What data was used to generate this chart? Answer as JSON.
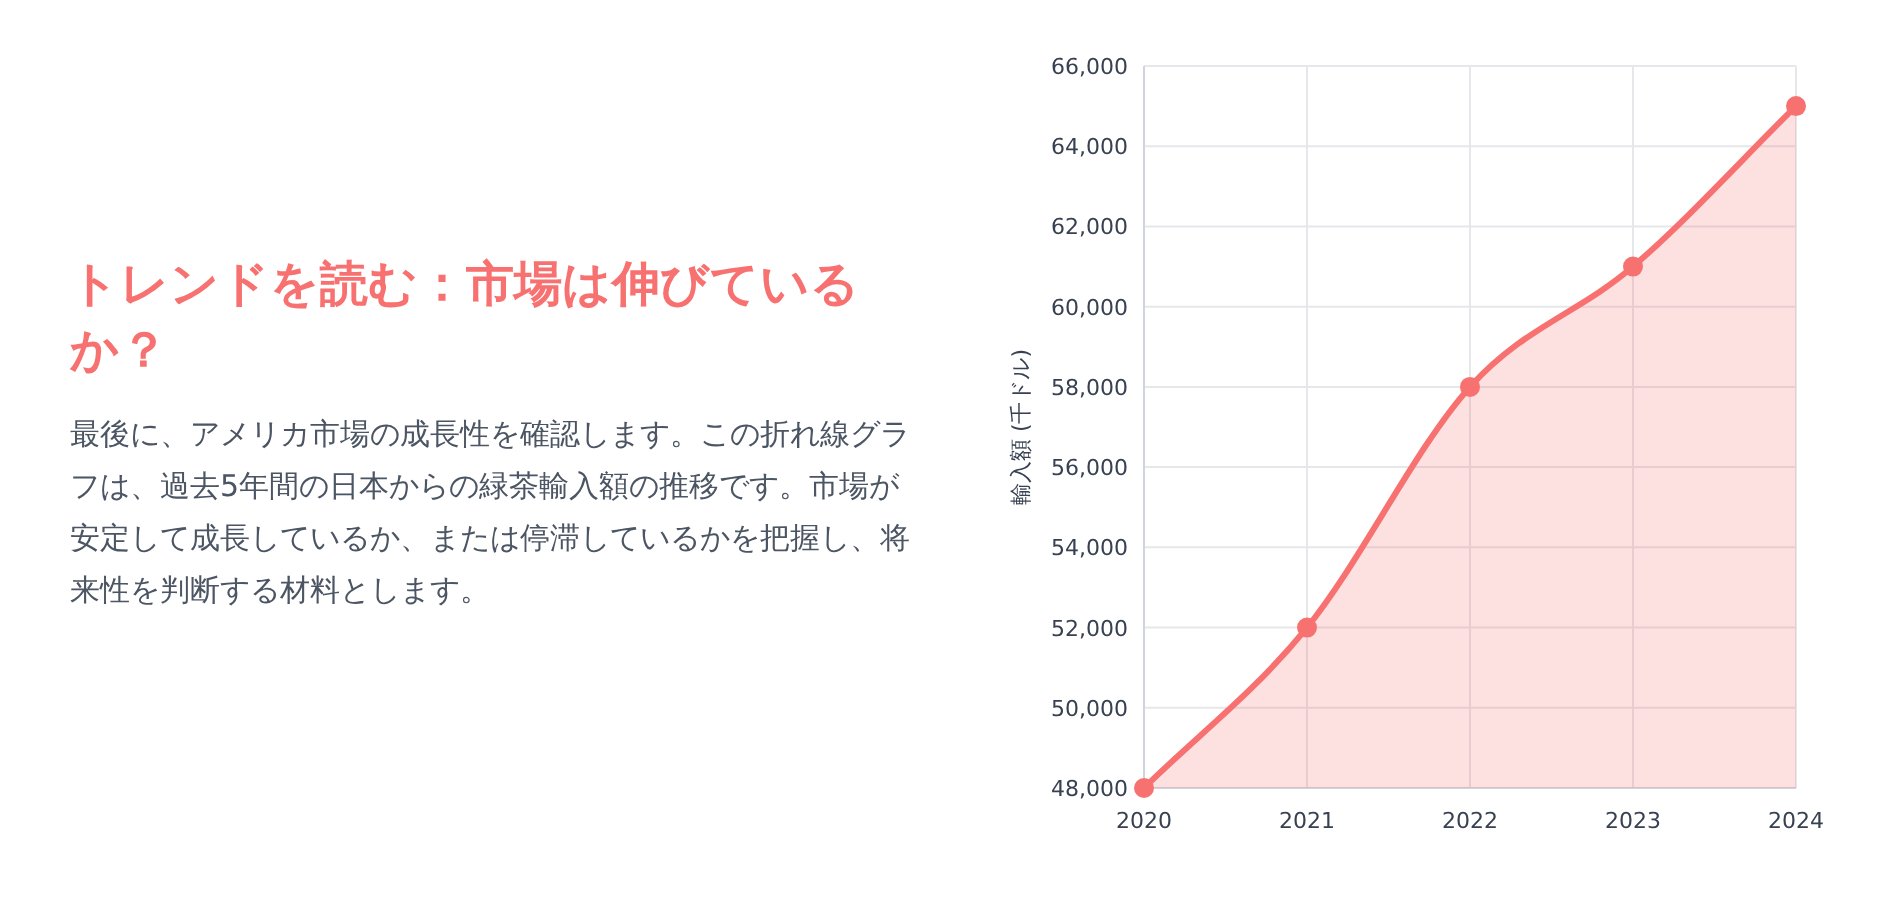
{
  "chart_data": {
    "type": "area",
    "title": "トレンドを読む：市場は伸びているか？",
    "subtitle": "最後に、アメリカ市場の成長性を確認します。この折れ線グラフは、過去5年間の日本からの緑茶輸入額の推移です。市場が安定して成長しているか、または停滞しているかを把握し、将来性を判断する材料とします。",
    "ylabel": "輸入額 (千ドル)",
    "categories": [
      "2020",
      "2021",
      "2022",
      "2023",
      "2024"
    ],
    "series": [
      {
        "color": "#f87171",
        "values": [
          48000,
          52000,
          58000,
          61000,
          65000
        ]
      }
    ],
    "ylim": [
      48000,
      66000
    ],
    "yticks": [
      {
        "value": 48000,
        "label": "48,000"
      },
      {
        "value": 50000,
        "label": "50,000"
      },
      {
        "value": 52000,
        "label": "52,000"
      },
      {
        "value": 54000,
        "label": "54,000"
      },
      {
        "value": 56000,
        "label": "56,000"
      },
      {
        "value": 58000,
        "label": "58,000"
      },
      {
        "value": 60000,
        "label": "60,000"
      },
      {
        "value": 62000,
        "label": "62,000"
      },
      {
        "value": 64000,
        "label": "64,000"
      },
      {
        "value": 66000,
        "label": "66,000"
      }
    ],
    "grid": true,
    "marker": "circle",
    "line_style": "solid"
  }
}
